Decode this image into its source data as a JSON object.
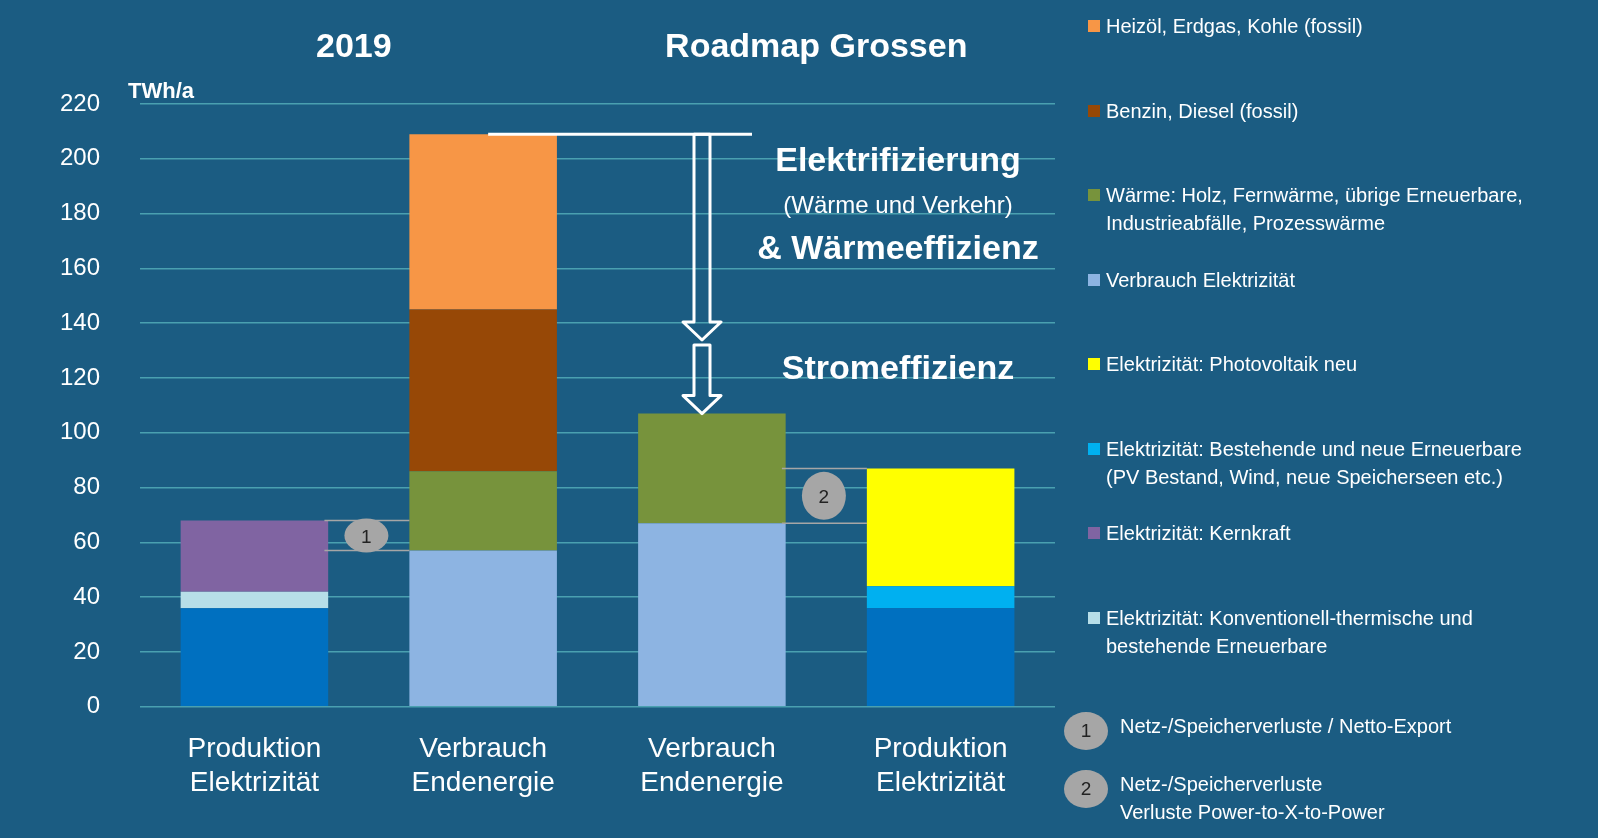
{
  "chart_data": {
    "type": "bar",
    "stacked": true,
    "ylabel": "TWh/a",
    "categories": [
      "Produktion\nElektrizität",
      "Verbrauch\nEndenergie",
      "Verbrauch\nEndenergie",
      "Produktion\nElektrizität"
    ],
    "series": [
      {
        "color": "#0070c0",
        "values": [
          36,
          null,
          null,
          36
        ]
      },
      {
        "name": "Elektrizität: Konventionell-thermische und bestehende Erneuerbare",
        "color": "#b7dee8",
        "values": [
          6,
          null,
          null,
          null
        ]
      },
      {
        "name": "Elektrizität: Kernkraft",
        "color": "#8064a2",
        "values": [
          26,
          null,
          null,
          null
        ]
      },
      {
        "name": "Elektrizität: Bestehende und neue Erneuerbare (PV Bestand, Wind, neue Speicherseen etc.)",
        "color": "#00b0f0",
        "values": [
          null,
          null,
          null,
          8
        ]
      },
      {
        "name": "Elektrizität: Photovoltaik neu",
        "color": "#ffff00",
        "values": [
          null,
          null,
          null,
          43
        ]
      },
      {
        "name": "Verbrauch Elektrizität",
        "color": "#8db4e2",
        "values": [
          null,
          57,
          67,
          null
        ]
      },
      {
        "name": "Wärme: Holz, Fernwärme, übrige Erneuerbare, Industrieabfälle, Prozesswärme",
        "color": "#77933c",
        "values": [
          null,
          29,
          40,
          null
        ]
      },
      {
        "name": "Benzin, Diesel (fossil)",
        "color": "#974806",
        "values": [
          null,
          59,
          null,
          null
        ]
      },
      {
        "name": "Heizöl, Erdgas, Kohle (fossil)",
        "color": "#f79646",
        "values": [
          null,
          64,
          null,
          null
        ]
      }
    ],
    "ylim": [
      0,
      220
    ],
    "yticks": [
      0,
      20,
      40,
      60,
      80,
      100,
      120,
      140,
      160,
      180,
      200,
      220
    ],
    "grid": "y",
    "legend": "right",
    "ref_lines": [
      {
        "axis": "y",
        "value": 209,
        "color": "#ffffff"
      }
    ],
    "annotations": [
      "2019",
      "Roadmap Grossen",
      "Elektrifizierung",
      "(Wärme und Verkehr)",
      "& Wärmeeffizienz",
      "Stromeffizienz",
      "1",
      "2",
      "1",
      "Netz-/Speicherverluste / Netto-Export",
      "2",
      "Netz-/Speicherverluste",
      "Verluste Power-to-X-to-Power"
    ]
  }
}
